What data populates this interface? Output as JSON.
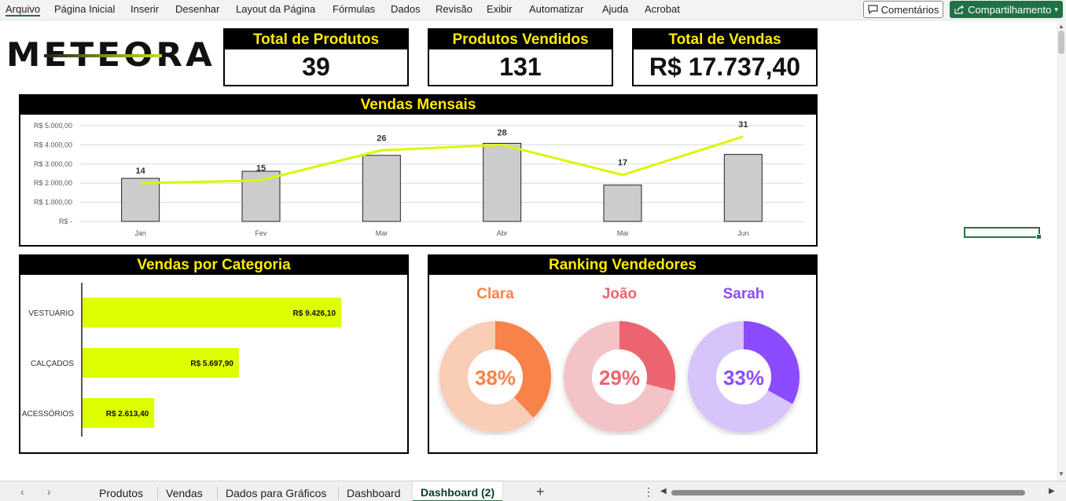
{
  "menu": {
    "items": [
      "Arquivo",
      "Página Inicial",
      "Inserir",
      "Desenhar",
      "Layout da Página",
      "Fórmulas",
      "Dados",
      "Revisão",
      "Exibir",
      "Automatizar",
      "Ajuda",
      "Acrobat"
    ],
    "comments_label": "Comentários",
    "share_label": "Compartilhamento"
  },
  "logo": {
    "text": "METEORA"
  },
  "kpis": {
    "total_produtos": {
      "label": "Total de Produtos",
      "value": "39"
    },
    "produtos_vendidos": {
      "label": "Produtos Vendidos",
      "value": "131"
    },
    "total_vendas": {
      "label": "Total de Vendas",
      "value": "R$ 17.737,40"
    }
  },
  "panels": {
    "monthly": {
      "title": "Vendas Mensais"
    },
    "category": {
      "title": "Vendas por Categoria"
    },
    "ranking": {
      "title": "Ranking Vendedores"
    }
  },
  "chart_data": [
    {
      "type": "bar",
      "title": "Vendas Mensais",
      "categories": [
        "Jan",
        "Fev",
        "Mar",
        "Abr",
        "Mai",
        "Jun"
      ],
      "series": [
        {
          "type": "bar",
          "values": [
            2250,
            2620,
            3450,
            4080,
            1900,
            3500
          ]
        },
        {
          "type": "line",
          "values": [
            14,
            15,
            26,
            28,
            17,
            31
          ]
        }
      ],
      "yticks": [
        "R$ -",
        "R$ 1.000,00",
        "R$ 2.000,00",
        "R$ 3.000,00",
        "R$ 4.000,00",
        "R$ 5.000,00"
      ],
      "ylim": [
        0,
        5000
      ],
      "y2lim": [
        0,
        35
      ],
      "grid": true,
      "colors": {
        "bar": "#cccccc",
        "line": "#ddf500"
      }
    },
    {
      "type": "bar",
      "orientation": "horizontal",
      "title": "Vendas por Categoria",
      "categories": [
        "VESTUÁRIO",
        "CALÇADOS",
        "ACESSÓRIOS"
      ],
      "values": [
        9426.1,
        5697.9,
        2613.4
      ],
      "labels": [
        "R$ 9.426,10",
        "R$ 5.697,90",
        "R$ 2.613,40"
      ],
      "xlim": [
        0,
        10600
      ],
      "colors": {
        "bar": "#ddff00"
      }
    },
    {
      "type": "pie",
      "title": "Ranking Vendedores",
      "donuts": [
        {
          "name": "Clara",
          "value": 38,
          "label": "38%",
          "color": "#f7824a",
          "track": "#f9cdb6"
        },
        {
          "name": "João",
          "value": 29,
          "label": "29%",
          "color": "#ec6470",
          "track": "#f4c3c8"
        },
        {
          "name": "Sarah",
          "value": 33,
          "label": "33%",
          "color": "#8c4bff",
          "track": "#d6c4fb"
        }
      ]
    }
  ],
  "tabs": {
    "items": [
      "Produtos",
      "Vendas",
      "Dados para Gráficos",
      "Dashboard",
      "Dashboard (2)"
    ],
    "active": "Dashboard (2)"
  }
}
